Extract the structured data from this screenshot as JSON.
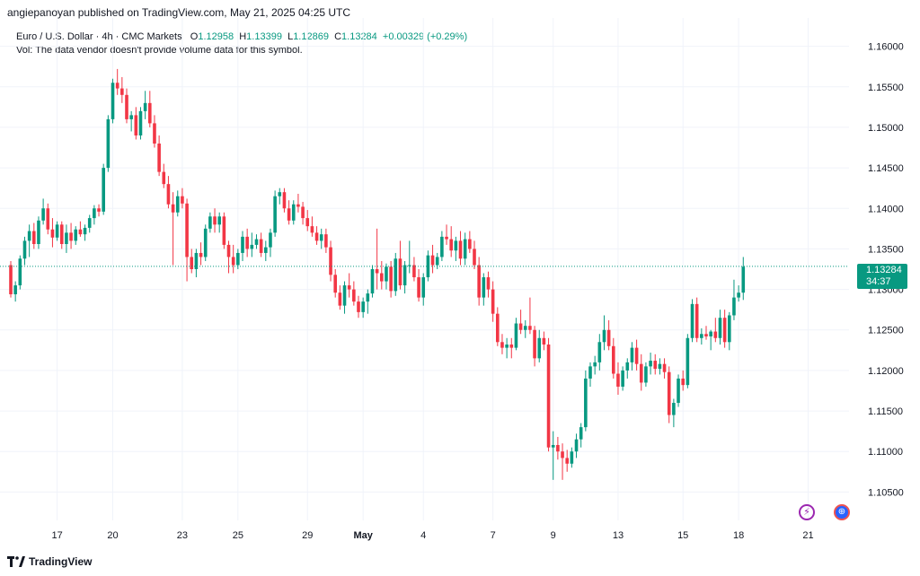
{
  "header": {
    "published": "angiepanoyan published on TradingView.com, May 21, 2025 04:25 UTC"
  },
  "legend": {
    "symbol": "Euro / U.S. Dollar · 4h · CMC Markets",
    "open_key": "O",
    "open": "1.12958",
    "high_key": "H",
    "high": "1.13399",
    "low_key": "L",
    "low": "1.12869",
    "close_key": "C",
    "close": "1.13284",
    "change": "+0.00329 (+0.29%)",
    "volume_note": "Vol: The data vendor doesn't provide volume data for this symbol."
  },
  "price_tag": {
    "price": "1.13284",
    "countdown": "34:37"
  },
  "footer": {
    "brand": "TradingView"
  },
  "colors": {
    "up": "#089981",
    "down": "#f23645",
    "last_price": "#089981",
    "grid": "#f0f3fa"
  },
  "icons": {
    "bolt": "lightning-icon",
    "globe": "globe-icon"
  },
  "chart_data": {
    "type": "candlestick",
    "last_price": 1.13284,
    "ylim": [
      1.1015,
      1.1635
    ],
    "y_ticks": [
      "1.16000",
      "1.15500",
      "1.15000",
      "1.14500",
      "1.14000",
      "1.13500",
      "1.13000",
      "1.12500",
      "1.12000",
      "1.11500",
      "1.11000",
      "1.10500"
    ],
    "x_ticks": [
      {
        "label": "17",
        "index": 10
      },
      {
        "label": "20",
        "index": 22
      },
      {
        "label": "23",
        "index": 37
      },
      {
        "label": "25",
        "index": 49
      },
      {
        "label": "29",
        "index": 64
      },
      {
        "label": "May",
        "index": 76,
        "bold": true
      },
      {
        "label": "4",
        "index": 89
      },
      {
        "label": "7",
        "index": 104
      },
      {
        "label": "9",
        "index": 117
      },
      {
        "label": "13",
        "index": 131
      },
      {
        "label": "15",
        "index": 145
      },
      {
        "label": "18",
        "index": 157
      },
      {
        "label": "21",
        "index": 172
      }
    ],
    "candles": [
      [
        1.133,
        1.1335,
        1.129,
        1.1294
      ],
      [
        1.1294,
        1.131,
        1.1285,
        1.1305
      ],
      [
        1.1305,
        1.1342,
        1.13,
        1.1338
      ],
      [
        1.1338,
        1.1365,
        1.133,
        1.136
      ],
      [
        1.136,
        1.138,
        1.134,
        1.1372
      ],
      [
        1.1372,
        1.1382,
        1.135,
        1.1356
      ],
      [
        1.1356,
        1.139,
        1.135,
        1.1385
      ],
      [
        1.1385,
        1.1412,
        1.138,
        1.14
      ],
      [
        1.14,
        1.1406,
        1.1368,
        1.1374
      ],
      [
        1.1374,
        1.1388,
        1.1352,
        1.1364
      ],
      [
        1.1364,
        1.1384,
        1.136,
        1.138
      ],
      [
        1.138,
        1.1384,
        1.135,
        1.1356
      ],
      [
        1.1356,
        1.138,
        1.1345,
        1.137
      ],
      [
        1.137,
        1.1382,
        1.135,
        1.136
      ],
      [
        1.136,
        1.1378,
        1.1355,
        1.1374
      ],
      [
        1.1374,
        1.1384,
        1.1365,
        1.1368
      ],
      [
        1.1368,
        1.138,
        1.136,
        1.1376
      ],
      [
        1.1376,
        1.1392,
        1.137,
        1.1388
      ],
      [
        1.1388,
        1.1404,
        1.138,
        1.14
      ],
      [
        1.14,
        1.1405,
        1.139,
        1.1396
      ],
      [
        1.1396,
        1.1455,
        1.1392,
        1.145
      ],
      [
        1.145,
        1.1515,
        1.1445,
        1.151
      ],
      [
        1.151,
        1.156,
        1.1505,
        1.1555
      ],
      [
        1.1555,
        1.1572,
        1.154,
        1.1548
      ],
      [
        1.1548,
        1.1562,
        1.153,
        1.154
      ],
      [
        1.154,
        1.1548,
        1.1505,
        1.151
      ],
      [
        1.151,
        1.152,
        1.1495,
        1.1515
      ],
      [
        1.1515,
        1.1525,
        1.1485,
        1.149
      ],
      [
        1.149,
        1.1525,
        1.1485,
        1.152
      ],
      [
        1.152,
        1.1545,
        1.151,
        1.153
      ],
      [
        1.153,
        1.1545,
        1.15,
        1.1505
      ],
      [
        1.1505,
        1.1515,
        1.1475,
        1.148
      ],
      [
        1.148,
        1.149,
        1.144,
        1.1445
      ],
      [
        1.1445,
        1.1455,
        1.1425,
        1.143
      ],
      [
        1.143,
        1.144,
        1.14,
        1.1405
      ],
      [
        1.1405,
        1.142,
        1.133,
        1.1395
      ],
      [
        1.1395,
        1.1422,
        1.139,
        1.1415
      ],
      [
        1.1415,
        1.1425,
        1.14,
        1.1406
      ],
      [
        1.1406,
        1.1412,
        1.131,
        1.134
      ],
      [
        1.134,
        1.135,
        1.132,
        1.1325
      ],
      [
        1.1325,
        1.135,
        1.1315,
        1.1345
      ],
      [
        1.1345,
        1.1358,
        1.133,
        1.134
      ],
      [
        1.134,
        1.138,
        1.1335,
        1.1375
      ],
      [
        1.1375,
        1.1395,
        1.137,
        1.139
      ],
      [
        1.139,
        1.14,
        1.137,
        1.138
      ],
      [
        1.138,
        1.1395,
        1.137,
        1.139
      ],
      [
        1.139,
        1.1395,
        1.135,
        1.1355
      ],
      [
        1.1355,
        1.136,
        1.132,
        1.134
      ],
      [
        1.134,
        1.1355,
        1.132,
        1.133
      ],
      [
        1.133,
        1.135,
        1.1325,
        1.1345
      ],
      [
        1.1345,
        1.1372,
        1.1335,
        1.1365
      ],
      [
        1.1365,
        1.1375,
        1.134,
        1.135
      ],
      [
        1.135,
        1.137,
        1.134,
        1.1355
      ],
      [
        1.1355,
        1.1368,
        1.135,
        1.1362
      ],
      [
        1.1362,
        1.137,
        1.134,
        1.1345
      ],
      [
        1.1345,
        1.136,
        1.1335,
        1.1352
      ],
      [
        1.1352,
        1.1375,
        1.134,
        1.137
      ],
      [
        1.137,
        1.1422,
        1.1365,
        1.1415
      ],
      [
        1.1415,
        1.1425,
        1.1405,
        1.142
      ],
      [
        1.142,
        1.1425,
        1.1395,
        1.14
      ],
      [
        1.14,
        1.141,
        1.138,
        1.1385
      ],
      [
        1.1385,
        1.141,
        1.138,
        1.1405
      ],
      [
        1.1405,
        1.1418,
        1.1395,
        1.1402
      ],
      [
        1.1402,
        1.1408,
        1.138,
        1.1388
      ],
      [
        1.1388,
        1.1398,
        1.1372,
        1.1378
      ],
      [
        1.1378,
        1.139,
        1.1365,
        1.137
      ],
      [
        1.137,
        1.1378,
        1.1355,
        1.136
      ],
      [
        1.136,
        1.1375,
        1.135,
        1.1368
      ],
      [
        1.1368,
        1.1375,
        1.1345,
        1.1352
      ],
      [
        1.1352,
        1.136,
        1.131,
        1.1318
      ],
      [
        1.1318,
        1.1325,
        1.129,
        1.1296
      ],
      [
        1.1296,
        1.1305,
        1.1275,
        1.128
      ],
      [
        1.128,
        1.131,
        1.127,
        1.1305
      ],
      [
        1.1305,
        1.132,
        1.129,
        1.13
      ],
      [
        1.13,
        1.131,
        1.128,
        1.1285
      ],
      [
        1.1285,
        1.1292,
        1.1265,
        1.1272
      ],
      [
        1.1272,
        1.129,
        1.1265,
        1.1285
      ],
      [
        1.1285,
        1.13,
        1.127,
        1.1295
      ],
      [
        1.1295,
        1.133,
        1.129,
        1.1325
      ],
      [
        1.1325,
        1.1375,
        1.13,
        1.132
      ],
      [
        1.132,
        1.1335,
        1.13,
        1.131
      ],
      [
        1.131,
        1.1332,
        1.13,
        1.1328
      ],
      [
        1.1328,
        1.1335,
        1.129,
        1.1298
      ],
      [
        1.1298,
        1.1345,
        1.1292,
        1.1338
      ],
      [
        1.1338,
        1.136,
        1.13,
        1.1305
      ],
      [
        1.1305,
        1.1335,
        1.1295,
        1.133
      ],
      [
        1.133,
        1.136,
        1.132,
        1.133
      ],
      [
        1.133,
        1.134,
        1.131,
        1.1315
      ],
      [
        1.1315,
        1.1325,
        1.1285,
        1.129
      ],
      [
        1.129,
        1.132,
        1.128,
        1.1315
      ],
      [
        1.1315,
        1.1348,
        1.131,
        1.1342
      ],
      [
        1.1342,
        1.1355,
        1.132,
        1.133
      ],
      [
        1.133,
        1.1345,
        1.1325,
        1.134
      ],
      [
        1.134,
        1.1372,
        1.1335,
        1.1365
      ],
      [
        1.1365,
        1.138,
        1.1355,
        1.1362
      ],
      [
        1.1362,
        1.1378,
        1.134,
        1.1348
      ],
      [
        1.1348,
        1.1365,
        1.1335,
        1.136
      ],
      [
        1.136,
        1.1372,
        1.133,
        1.1338
      ],
      [
        1.1338,
        1.137,
        1.133,
        1.1362
      ],
      [
        1.1362,
        1.1372,
        1.1345,
        1.135
      ],
      [
        1.135,
        1.136,
        1.1325,
        1.133
      ],
      [
        1.133,
        1.134,
        1.128,
        1.129
      ],
      [
        1.129,
        1.132,
        1.128,
        1.1315
      ],
      [
        1.1315,
        1.1322,
        1.129,
        1.13
      ],
      [
        1.13,
        1.131,
        1.126,
        1.127
      ],
      [
        1.127,
        1.1278,
        1.123,
        1.1235
      ],
      [
        1.1235,
        1.1245,
        1.122,
        1.1228
      ],
      [
        1.1228,
        1.124,
        1.1215,
        1.1232
      ],
      [
        1.1232,
        1.124,
        1.1215,
        1.1228
      ],
      [
        1.1228,
        1.1265,
        1.1225,
        1.1258
      ],
      [
        1.1258,
        1.1275,
        1.1245,
        1.125
      ],
      [
        1.125,
        1.1262,
        1.124,
        1.1255
      ],
      [
        1.1255,
        1.129,
        1.1245,
        1.125
      ],
      [
        1.125,
        1.1255,
        1.1205,
        1.1215
      ],
      [
        1.1215,
        1.125,
        1.121,
        1.124
      ],
      [
        1.124,
        1.1248,
        1.1225,
        1.1232
      ],
      [
        1.1232,
        1.124,
        1.11,
        1.1105
      ],
      [
        1.1105,
        1.1125,
        1.1065,
        1.1108
      ],
      [
        1.1108,
        1.1118,
        1.109,
        1.11
      ],
      [
        1.11,
        1.111,
        1.1065,
        1.1092
      ],
      [
        1.1092,
        1.1102,
        1.1075,
        1.1085
      ],
      [
        1.1085,
        1.1105,
        1.108,
        1.11
      ],
      [
        1.11,
        1.1122,
        1.1092,
        1.1115
      ],
      [
        1.1115,
        1.1135,
        1.1105,
        1.113
      ],
      [
        1.113,
        1.12,
        1.1125,
        1.119
      ],
      [
        1.119,
        1.121,
        1.118,
        1.1205
      ],
      [
        1.1205,
        1.1218,
        1.1195,
        1.121
      ],
      [
        1.121,
        1.1245,
        1.12,
        1.1235
      ],
      [
        1.1235,
        1.1268,
        1.1225,
        1.125
      ],
      [
        1.125,
        1.1262,
        1.1225,
        1.123
      ],
      [
        1.123,
        1.124,
        1.119,
        1.1196
      ],
      [
        1.1196,
        1.121,
        1.117,
        1.118
      ],
      [
        1.118,
        1.1205,
        1.1175,
        1.12
      ],
      [
        1.12,
        1.1215,
        1.119,
        1.121
      ],
      [
        1.121,
        1.1235,
        1.12,
        1.1228
      ],
      [
        1.1228,
        1.1238,
        1.12,
        1.1208
      ],
      [
        1.1208,
        1.122,
        1.1175,
        1.1185
      ],
      [
        1.1185,
        1.121,
        1.118,
        1.1205
      ],
      [
        1.1205,
        1.1222,
        1.1195,
        1.1212
      ],
      [
        1.1212,
        1.122,
        1.1195,
        1.1202
      ],
      [
        1.1202,
        1.1215,
        1.1195,
        1.1208
      ],
      [
        1.1208,
        1.1215,
        1.119,
        1.1198
      ],
      [
        1.1198,
        1.1205,
        1.1135,
        1.1145
      ],
      [
        1.1145,
        1.1165,
        1.113,
        1.116
      ],
      [
        1.116,
        1.1195,
        1.1155,
        1.119
      ],
      [
        1.119,
        1.12,
        1.1175,
        1.1182
      ],
      [
        1.1182,
        1.1245,
        1.1178,
        1.124
      ],
      [
        1.124,
        1.1288,
        1.1235,
        1.1282
      ],
      [
        1.1282,
        1.129,
        1.1235,
        1.124
      ],
      [
        1.124,
        1.1252,
        1.1232,
        1.1245
      ],
      [
        1.1245,
        1.1255,
        1.1238,
        1.1242
      ],
      [
        1.1242,
        1.125,
        1.1225,
        1.1248
      ],
      [
        1.1248,
        1.1265,
        1.1235,
        1.124
      ],
      [
        1.124,
        1.1275,
        1.1232,
        1.1265
      ],
      [
        1.1265,
        1.1275,
        1.1228,
        1.1235
      ],
      [
        1.1235,
        1.1272,
        1.1225,
        1.1268
      ],
      [
        1.1268,
        1.1312,
        1.1262,
        1.129
      ],
      [
        1.129,
        1.1305,
        1.1285,
        1.1296
      ],
      [
        1.1296,
        1.134,
        1.1287,
        1.1328
      ]
    ]
  }
}
